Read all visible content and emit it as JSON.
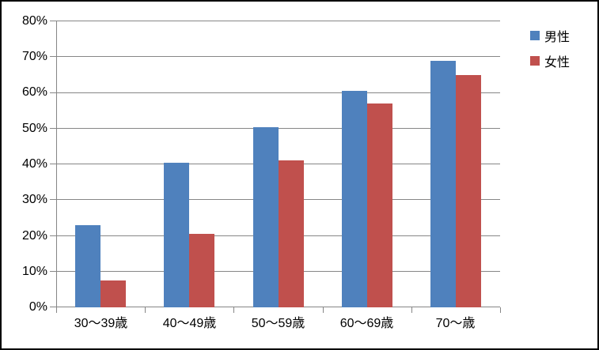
{
  "chart_data": {
    "type": "bar",
    "title": "",
    "xlabel": "",
    "ylabel": "",
    "categories": [
      "30〜39歳",
      "40〜49歳",
      "50〜59歳",
      "60〜69歳",
      "70〜歳"
    ],
    "series": [
      {
        "name": "男性",
        "color": "#4F81BD",
        "values": [
          23,
          40.5,
          50.5,
          60.5,
          69
        ]
      },
      {
        "name": "女性",
        "color": "#C0504D",
        "values": [
          7.5,
          20.5,
          41,
          57,
          65
        ]
      }
    ],
    "ylim": [
      0,
      80
    ],
    "ytick_step": 10,
    "ytick_labels": [
      "0%",
      "10%",
      "20%",
      "30%",
      "40%",
      "50%",
      "60%",
      "70%",
      "80%"
    ],
    "grid": true,
    "legend_position": "top-right"
  },
  "colors": {
    "male_series": "#4F81BD",
    "female_series": "#C0504D",
    "gridline": "#868686",
    "axis": "#868686",
    "text": "#000000",
    "background": "#FFFFFF",
    "chart_border": "#000000"
  }
}
